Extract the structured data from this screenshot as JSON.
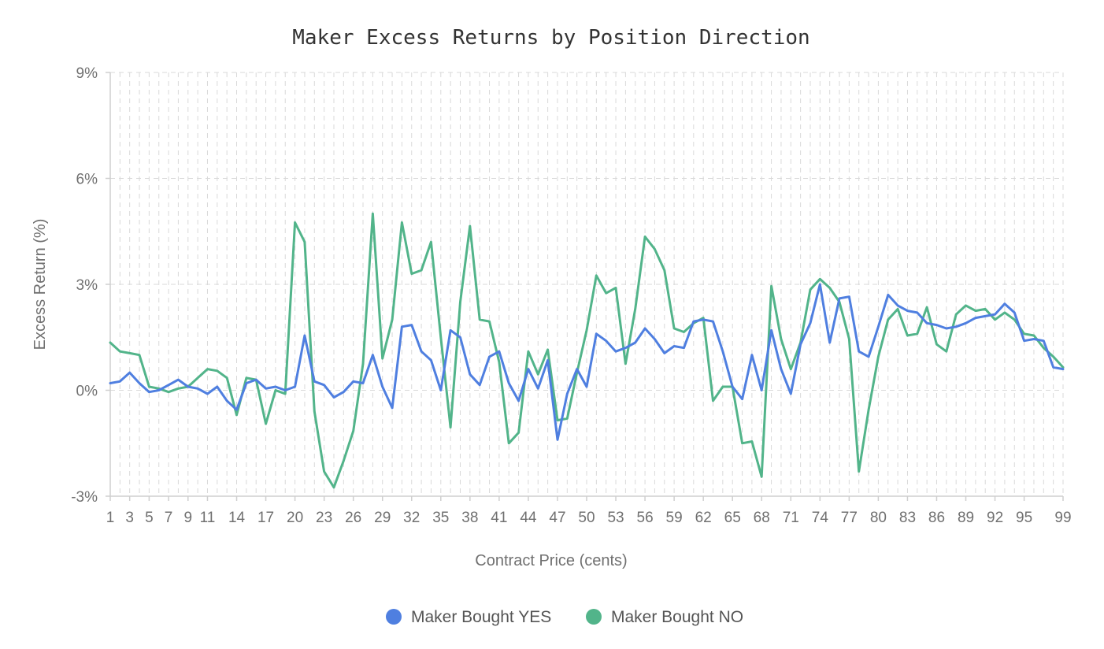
{
  "chart_data": {
    "type": "line",
    "title": "Maker Excess Returns by Position Direction",
    "xlabel": "Contract Price (cents)",
    "ylabel": "Excess Return (%)",
    "xlim": [
      1,
      99
    ],
    "ylim": [
      -3,
      9
    ],
    "y_ticks": [
      -3,
      0,
      3,
      6,
      9
    ],
    "y_tick_labels": [
      "-3%",
      "0%",
      "3%",
      "6%",
      "9%"
    ],
    "x_ticks": [
      1,
      3,
      5,
      7,
      9,
      11,
      14,
      17,
      20,
      23,
      26,
      29,
      32,
      35,
      38,
      41,
      44,
      47,
      50,
      53,
      56,
      59,
      62,
      65,
      68,
      71,
      74,
      77,
      80,
      83,
      86,
      89,
      92,
      95,
      99
    ],
    "grid": true,
    "legend_position": "bottom-center",
    "series": [
      {
        "name": "Maker Bought YES",
        "color": "#4f7fe0",
        "x": [
          1,
          2,
          3,
          4,
          5,
          6,
          7,
          8,
          9,
          10,
          11,
          12,
          13,
          14,
          15,
          16,
          17,
          18,
          19,
          20,
          21,
          22,
          23,
          24,
          25,
          26,
          27,
          28,
          29,
          30,
          31,
          32,
          33,
          34,
          35,
          36,
          37,
          38,
          39,
          40,
          41,
          42,
          43,
          44,
          45,
          46,
          47,
          48,
          49,
          50,
          51,
          52,
          53,
          54,
          55,
          56,
          57,
          58,
          59,
          60,
          61,
          62,
          63,
          64,
          65,
          66,
          67,
          68,
          69,
          70,
          71,
          72,
          73,
          74,
          75,
          76,
          77,
          78,
          79,
          80,
          81,
          82,
          83,
          84,
          85,
          86,
          87,
          88,
          89,
          90,
          91,
          92,
          93,
          94,
          95,
          96,
          97,
          98,
          99
        ],
        "values": [
          0.2,
          0.25,
          0.5,
          0.2,
          -0.05,
          0.0,
          0.15,
          0.3,
          0.1,
          0.05,
          -0.1,
          0.1,
          -0.3,
          -0.55,
          0.2,
          0.3,
          0.05,
          0.1,
          0.0,
          0.1,
          1.55,
          0.25,
          0.15,
          -0.2,
          -0.05,
          0.25,
          0.2,
          1.0,
          0.1,
          -0.5,
          1.8,
          1.85,
          1.1,
          0.85,
          0.0,
          1.7,
          1.5,
          0.45,
          0.15,
          0.95,
          1.1,
          0.2,
          -0.3,
          0.6,
          0.05,
          0.85,
          -1.4,
          -0.1,
          0.6,
          0.1,
          1.6,
          1.4,
          1.1,
          1.2,
          1.35,
          1.75,
          1.45,
          1.05,
          1.25,
          1.2,
          1.95,
          2.0,
          1.95,
          1.1,
          0.1,
          -0.25,
          1.0,
          0.0,
          1.7,
          0.6,
          -0.1,
          1.3,
          1.9,
          3.0,
          1.35,
          2.6,
          2.65,
          1.1,
          0.95,
          1.8,
          2.7,
          2.4,
          2.25,
          2.2,
          1.9,
          1.85,
          1.75,
          1.8,
          1.9,
          2.05,
          2.1,
          2.15,
          2.45,
          2.2,
          1.4,
          1.45,
          1.4,
          0.65,
          0.6
        ]
      },
      {
        "name": "Maker Bought NO",
        "color": "#52b48a",
        "x": [
          1,
          2,
          3,
          4,
          5,
          6,
          7,
          8,
          9,
          10,
          11,
          12,
          13,
          14,
          15,
          16,
          17,
          18,
          19,
          20,
          21,
          22,
          23,
          24,
          25,
          26,
          27,
          28,
          29,
          30,
          31,
          32,
          33,
          34,
          35,
          36,
          37,
          38,
          39,
          40,
          41,
          42,
          43,
          44,
          45,
          46,
          47,
          48,
          49,
          50,
          51,
          52,
          53,
          54,
          55,
          56,
          57,
          58,
          59,
          60,
          61,
          62,
          63,
          64,
          65,
          66,
          67,
          68,
          69,
          70,
          71,
          72,
          73,
          74,
          75,
          76,
          77,
          78,
          79,
          80,
          81,
          82,
          83,
          84,
          85,
          86,
          87,
          88,
          89,
          90,
          91,
          92,
          93,
          94,
          95,
          96,
          97,
          98,
          99
        ],
        "values": [
          1.35,
          1.1,
          1.05,
          1.0,
          0.1,
          0.05,
          -0.05,
          0.05,
          0.1,
          0.35,
          0.6,
          0.55,
          0.35,
          -0.7,
          0.35,
          0.3,
          -0.95,
          0.0,
          -0.1,
          4.75,
          4.2,
          -0.6,
          -2.3,
          -2.75,
          -2.0,
          -1.15,
          0.75,
          5.0,
          0.9,
          2.0,
          4.75,
          3.3,
          3.4,
          4.2,
          1.5,
          -1.05,
          2.5,
          4.65,
          2.0,
          1.95,
          0.8,
          -1.5,
          -1.2,
          1.1,
          0.45,
          1.15,
          -0.85,
          -0.8,
          0.5,
          1.7,
          3.25,
          2.75,
          2.9,
          0.75,
          2.3,
          4.35,
          4.0,
          3.4,
          1.75,
          1.65,
          1.9,
          2.05,
          -0.3,
          0.1,
          0.1,
          -1.5,
          -1.45,
          -2.45,
          2.95,
          1.45,
          0.6,
          1.35,
          2.85,
          3.15,
          2.9,
          2.5,
          1.45,
          -2.3,
          -0.55,
          0.95,
          2.0,
          2.3,
          1.55,
          1.6,
          2.35,
          1.3,
          1.1,
          2.15,
          2.4,
          2.25,
          2.3,
          2.0,
          2.2,
          2.0,
          1.6,
          1.55,
          1.2,
          0.95,
          0.65
        ]
      }
    ]
  }
}
